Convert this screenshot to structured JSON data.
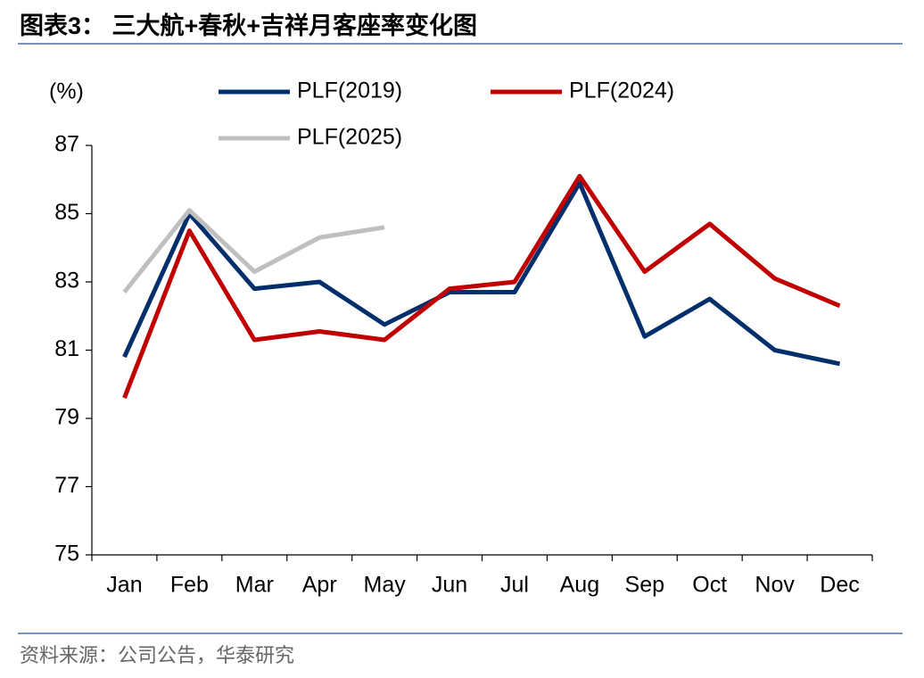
{
  "chart_data": {
    "type": "line",
    "title": "图表3：  三大航+春秋+吉祥月客座率变化图",
    "source": "资料来源：公司公告，华泰研究",
    "y_label": "(%)",
    "categories": [
      "Jan",
      "Feb",
      "Mar",
      "Apr",
      "May",
      "Jun",
      "Jul",
      "Aug",
      "Sep",
      "Oct",
      "Nov",
      "Dec"
    ],
    "series": [
      {
        "name": "PLF(2019)",
        "color": "#002f6c",
        "values": [
          80.8,
          85.0,
          82.8,
          83.0,
          81.75,
          82.7,
          82.7,
          85.9,
          81.4,
          82.5,
          81.0,
          80.6
        ]
      },
      {
        "name": "PLF(2024)",
        "color": "#c00000",
        "values": [
          79.6,
          84.5,
          81.3,
          81.55,
          81.3,
          82.8,
          83.0,
          86.1,
          83.3,
          84.7,
          83.1,
          82.3
        ]
      },
      {
        "name": "PLF(2025)",
        "color": "#bfbfbf",
        "values": [
          82.7,
          85.1,
          83.3,
          84.3,
          84.6,
          null,
          null,
          null,
          null,
          null,
          null,
          null
        ]
      }
    ],
    "ylim": [
      75,
      87
    ],
    "yticks": [
      75,
      77,
      79,
      81,
      83,
      85,
      87
    ],
    "grid": false
  }
}
